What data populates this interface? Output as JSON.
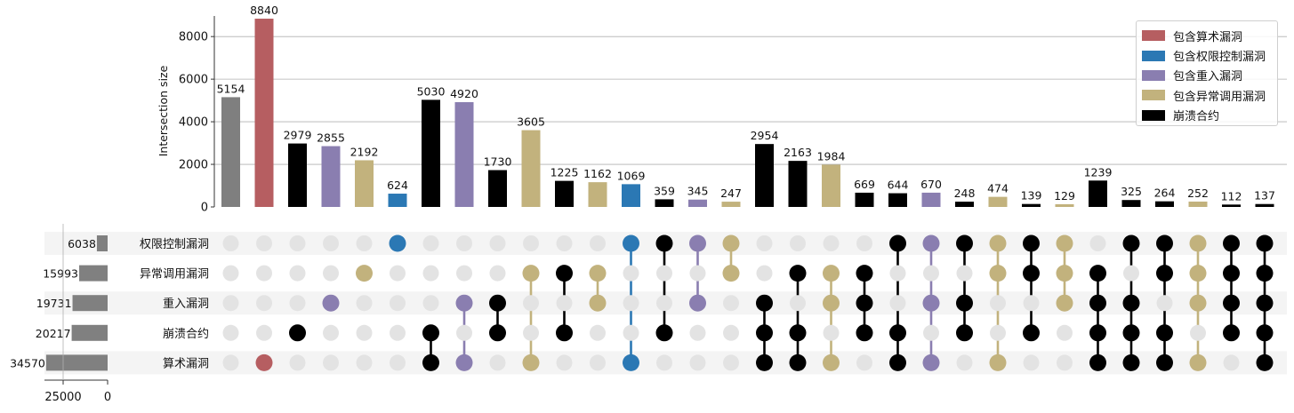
{
  "colors": {
    "arith": "#b65e61",
    "access": "#2b78b4",
    "reentry": "#8a7eb0",
    "exception": "#c2b27d",
    "crash": "#000000",
    "other": "#7f7f7f",
    "inactive_dot": "#e3e3e3",
    "band": "#f4f4f4",
    "set_size_bar": "#808080"
  },
  "legend": [
    {
      "label": "包含算术漏洞",
      "color_key": "arith"
    },
    {
      "label": "包含权限控制漏洞",
      "color_key": "access"
    },
    {
      "label": "包含重入漏洞",
      "color_key": "reentry"
    },
    {
      "label": "包含异常调用漏洞",
      "color_key": "exception"
    },
    {
      "label": "崩溃合约",
      "color_key": "crash"
    }
  ],
  "chart_data": {
    "type": "bar",
    "subtype": "upset",
    "ylabel": "Intersection size",
    "ylim": [
      0,
      9300
    ],
    "yticks": [
      0,
      2000,
      4000,
      6000,
      8000
    ],
    "grid": true,
    "legend_position": "top-right",
    "sets": [
      "权限控制漏洞",
      "异常调用漏洞",
      "重入漏洞",
      "崩溃合约",
      "算术漏洞"
    ],
    "set_sizes": [
      6038,
      15993,
      19731,
      20217,
      34570
    ],
    "set_size_xticks": [
      25000,
      0
    ],
    "intersections": [
      {
        "value": 5154,
        "members": [],
        "color_key": "other"
      },
      {
        "value": 8840,
        "members": [
          4
        ],
        "color_key": "arith"
      },
      {
        "value": 2979,
        "members": [
          3
        ],
        "color_key": "crash"
      },
      {
        "value": 2855,
        "members": [
          2
        ],
        "color_key": "reentry"
      },
      {
        "value": 2192,
        "members": [
          1
        ],
        "color_key": "exception"
      },
      {
        "value": 624,
        "members": [
          0
        ],
        "color_key": "access"
      },
      {
        "value": 5030,
        "members": [
          3,
          4
        ],
        "color_key": "crash"
      },
      {
        "value": 4920,
        "members": [
          2,
          4
        ],
        "color_key": "reentry"
      },
      {
        "value": 1730,
        "members": [
          2,
          3
        ],
        "color_key": "crash"
      },
      {
        "value": 3605,
        "members": [
          1,
          4
        ],
        "color_key": "exception"
      },
      {
        "value": 1225,
        "members": [
          1,
          3
        ],
        "color_key": "crash"
      },
      {
        "value": 1162,
        "members": [
          1,
          2
        ],
        "color_key": "exception"
      },
      {
        "value": 1069,
        "members": [
          0,
          4
        ],
        "color_key": "access"
      },
      {
        "value": 359,
        "members": [
          0,
          3
        ],
        "color_key": "crash"
      },
      {
        "value": 345,
        "members": [
          0,
          2
        ],
        "color_key": "reentry"
      },
      {
        "value": 247,
        "members": [
          0,
          1
        ],
        "color_key": "exception"
      },
      {
        "value": 2954,
        "members": [
          2,
          3,
          4
        ],
        "color_key": "crash"
      },
      {
        "value": 2163,
        "members": [
          1,
          3,
          4
        ],
        "color_key": "crash"
      },
      {
        "value": 1984,
        "members": [
          1,
          2,
          4
        ],
        "color_key": "exception"
      },
      {
        "value": 669,
        "members": [
          1,
          2,
          3
        ],
        "color_key": "crash"
      },
      {
        "value": 644,
        "members": [
          0,
          3,
          4
        ],
        "color_key": "crash"
      },
      {
        "value": 670,
        "members": [
          0,
          2,
          4
        ],
        "color_key": "reentry"
      },
      {
        "value": 248,
        "members": [
          0,
          2,
          3
        ],
        "color_key": "crash"
      },
      {
        "value": 474,
        "members": [
          0,
          1,
          4
        ],
        "color_key": "exception"
      },
      {
        "value": 139,
        "members": [
          0,
          1,
          3
        ],
        "color_key": "crash"
      },
      {
        "value": 129,
        "members": [
          0,
          1,
          2
        ],
        "color_key": "exception"
      },
      {
        "value": 1239,
        "members": [
          1,
          2,
          3,
          4
        ],
        "color_key": "crash"
      },
      {
        "value": 325,
        "members": [
          0,
          2,
          3,
          4
        ],
        "color_key": "crash"
      },
      {
        "value": 264,
        "members": [
          0,
          1,
          3,
          4
        ],
        "color_key": "crash"
      },
      {
        "value": 252,
        "members": [
          0,
          1,
          2,
          4
        ],
        "color_key": "exception"
      },
      {
        "value": 112,
        "members": [
          0,
          1,
          2,
          3
        ],
        "color_key": "crash"
      },
      {
        "value": 137,
        "members": [
          0,
          1,
          2,
          3,
          4
        ],
        "color_key": "crash"
      }
    ]
  }
}
